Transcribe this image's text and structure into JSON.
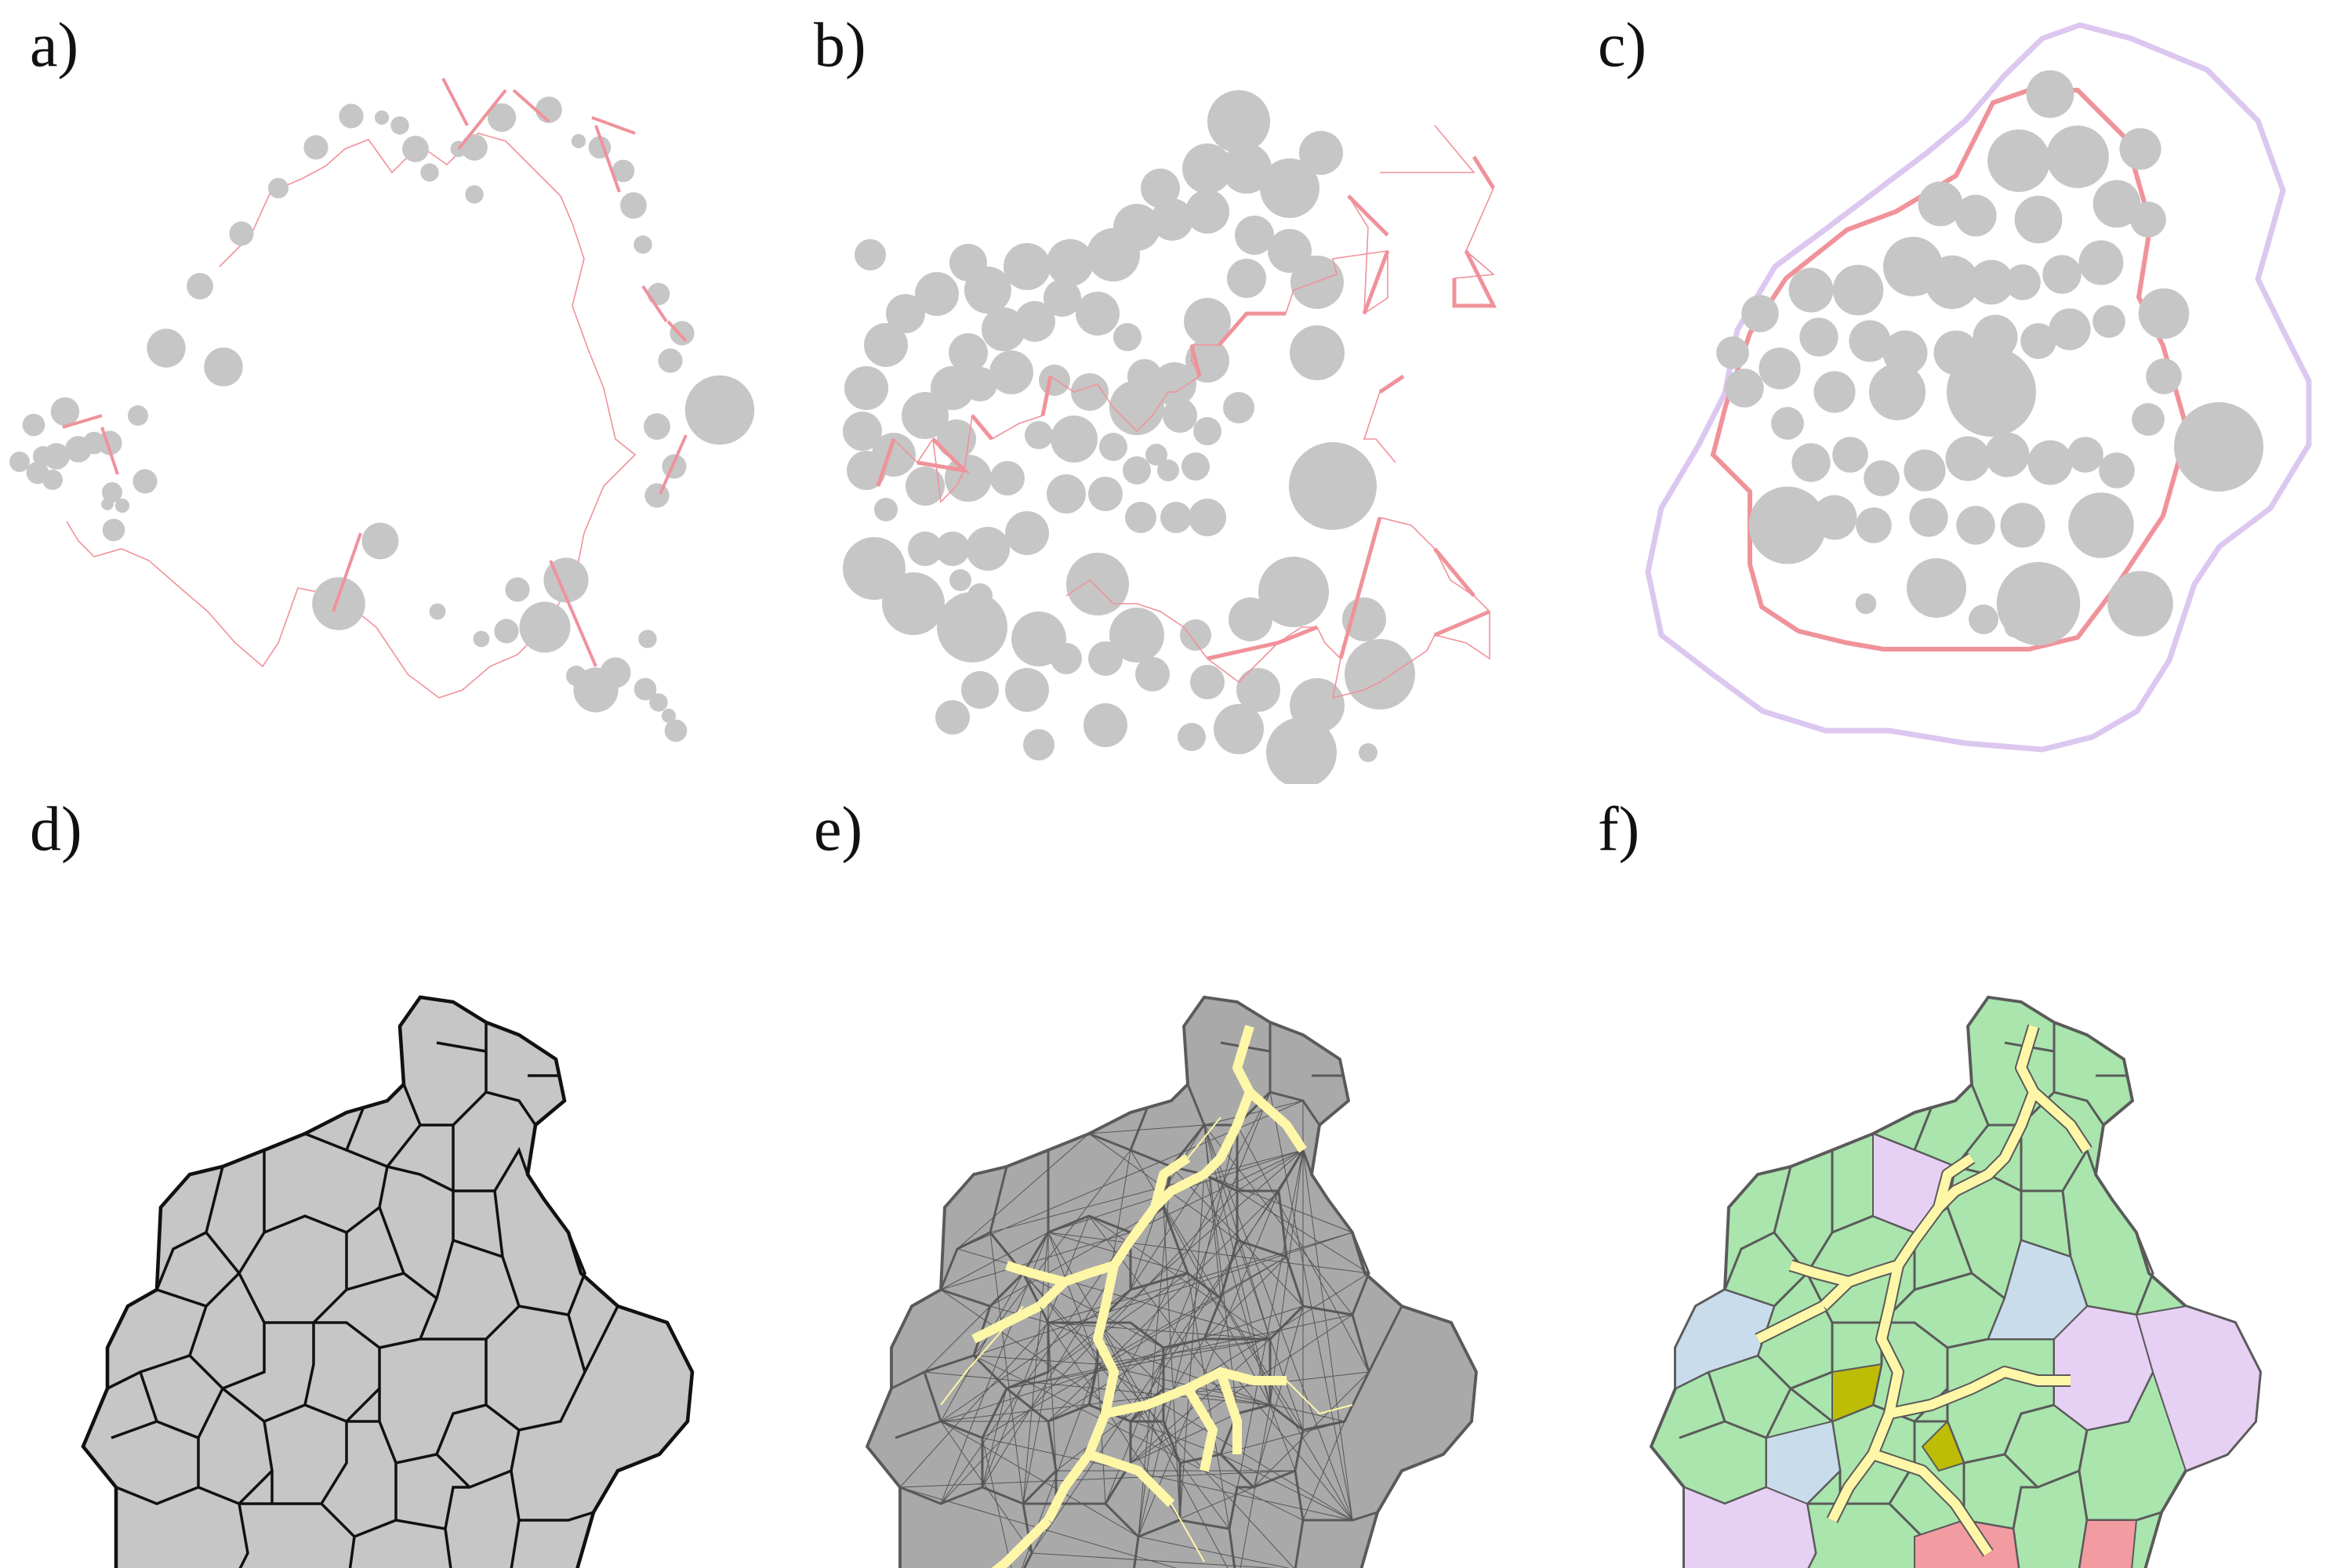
{
  "panels": [
    {
      "id": "a",
      "label": "a)"
    },
    {
      "id": "b",
      "label": "b)"
    },
    {
      "id": "c",
      "label": "c)"
    },
    {
      "id": "d",
      "label": "d)"
    },
    {
      "id": "e",
      "label": "e)"
    },
    {
      "id": "f",
      "label": "f)"
    }
  ],
  "colors": {
    "circle_fill": "#c6c6c6",
    "link_red": "#f0929a",
    "hull_purple": "#dcc7f0",
    "cell_outline": "#111111",
    "cell_outline_e": "#5a5a5a",
    "skeleton_yellow": "#fff7a8",
    "green": "#a9e5ad",
    "lavender": "#e6d0f3",
    "blue": "#c9dcec",
    "pink": "#f29ba1",
    "olive": "#bdbd06"
  }
}
